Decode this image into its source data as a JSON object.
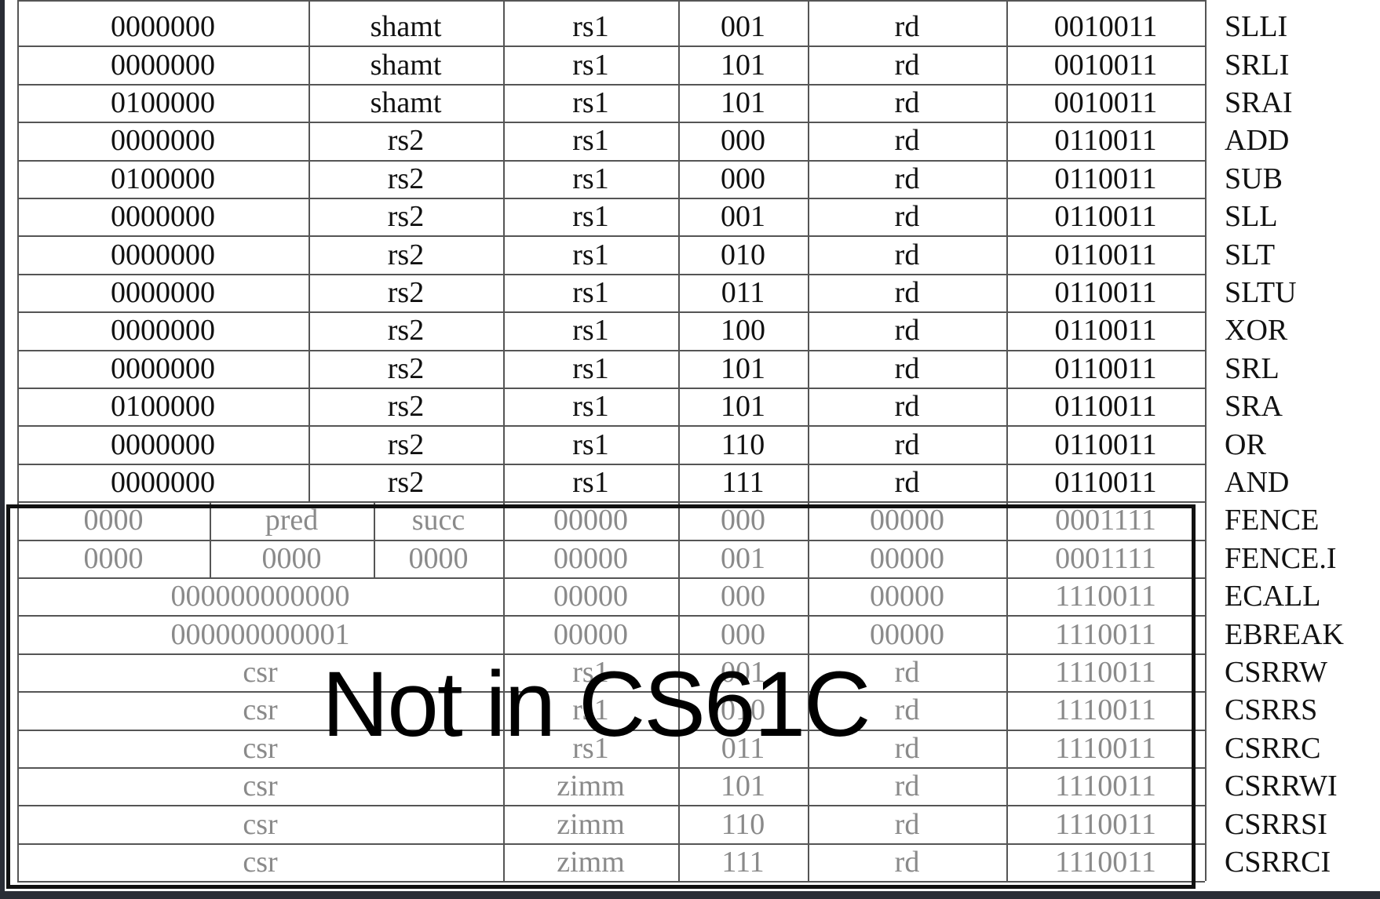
{
  "r_type_rows": [
    {
      "cells": [
        "0000000",
        "shamt",
        "rs1",
        "001",
        "rd",
        "0010011"
      ],
      "name": "SLLI"
    },
    {
      "cells": [
        "0000000",
        "shamt",
        "rs1",
        "101",
        "rd",
        "0010011"
      ],
      "name": "SRLI"
    },
    {
      "cells": [
        "0100000",
        "shamt",
        "rs1",
        "101",
        "rd",
        "0010011"
      ],
      "name": "SRAI"
    },
    {
      "cells": [
        "0000000",
        "rs2",
        "rs1",
        "000",
        "rd",
        "0110011"
      ],
      "name": "ADD"
    },
    {
      "cells": [
        "0100000",
        "rs2",
        "rs1",
        "000",
        "rd",
        "0110011"
      ],
      "name": "SUB"
    },
    {
      "cells": [
        "0000000",
        "rs2",
        "rs1",
        "001",
        "rd",
        "0110011"
      ],
      "name": "SLL"
    },
    {
      "cells": [
        "0000000",
        "rs2",
        "rs1",
        "010",
        "rd",
        "0110011"
      ],
      "name": "SLT"
    },
    {
      "cells": [
        "0000000",
        "rs2",
        "rs1",
        "011",
        "rd",
        "0110011"
      ],
      "name": "SLTU"
    },
    {
      "cells": [
        "0000000",
        "rs2",
        "rs1",
        "100",
        "rd",
        "0110011"
      ],
      "name": "XOR"
    },
    {
      "cells": [
        "0000000",
        "rs2",
        "rs1",
        "101",
        "rd",
        "0110011"
      ],
      "name": "SRL"
    },
    {
      "cells": [
        "0100000",
        "rs2",
        "rs1",
        "101",
        "rd",
        "0110011"
      ],
      "name": "SRA"
    },
    {
      "cells": [
        "0000000",
        "rs2",
        "rs1",
        "110",
        "rd",
        "0110011"
      ],
      "name": "OR"
    },
    {
      "cells": [
        "0000000",
        "rs2",
        "rs1",
        "111",
        "rd",
        "0110011"
      ],
      "name": "AND"
    }
  ],
  "fence_rows": [
    {
      "cells": [
        "0000",
        "pred",
        "succ",
        "00000",
        "000",
        "00000",
        "0001111"
      ],
      "name": "FENCE"
    },
    {
      "cells": [
        "0000",
        "0000",
        "0000",
        "00000",
        "001",
        "00000",
        "0001111"
      ],
      "name": "FENCE.I"
    }
  ],
  "system_rows": [
    {
      "cells": [
        "000000000000",
        "00000",
        "000",
        "00000",
        "1110011"
      ],
      "name": "ECALL"
    },
    {
      "cells": [
        "000000000001",
        "00000",
        "000",
        "00000",
        "1110011"
      ],
      "name": "EBREAK"
    },
    {
      "cells": [
        "csr",
        "rs1",
        "001",
        "rd",
        "1110011"
      ],
      "name": "CSRRW"
    },
    {
      "cells": [
        "csr",
        "rs1",
        "010",
        "rd",
        "1110011"
      ],
      "name": "CSRRS"
    },
    {
      "cells": [
        "csr",
        "rs1",
        "011",
        "rd",
        "1110011"
      ],
      "name": "CSRRC"
    },
    {
      "cells": [
        "csr",
        "zimm",
        "101",
        "rd",
        "1110011"
      ],
      "name": "CSRRWI"
    },
    {
      "cells": [
        "csr",
        "zimm",
        "110",
        "rd",
        "1110011"
      ],
      "name": "CSRRSI"
    },
    {
      "cells": [
        "csr",
        "zimm",
        "111",
        "rd",
        "1110011"
      ],
      "name": "CSRRCI"
    }
  ],
  "overlay_label": "Not in CS61C",
  "colors": {
    "text": "#111111",
    "dim_text": "#8a8a8a",
    "grid": "#555555",
    "frame": "#2a2d36"
  }
}
